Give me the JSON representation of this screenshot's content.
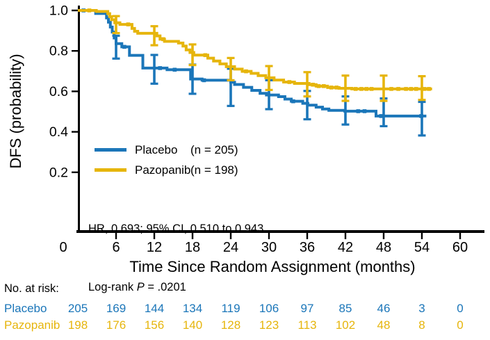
{
  "figure": {
    "legend": {
      "items": [
        {
          "name": "Placebo",
          "n_label": "(n = 205)",
          "color": "#1B76B9"
        },
        {
          "name": "Pazopanib",
          "n_label": "(n = 198)",
          "color": "#E6B50C"
        }
      ]
    },
    "stats": {
      "hr_line": "HR, 0.693; 95% CI, 0.510 to 0.943",
      "logrank_prefix": "Log-rank ",
      "p_symbol": "P",
      "p_suffix": " = .0201"
    },
    "risk_table": {
      "title": "No. at risk:",
      "timepoints": [
        0,
        6,
        12,
        18,
        24,
        30,
        36,
        42,
        48,
        54,
        60
      ],
      "rows": [
        {
          "label": "Placebo",
          "color": "#1B76B9",
          "values": [
            "205",
            "169",
            "144",
            "134",
            "119",
            "106",
            "97",
            "85",
            "46",
            "3",
            "0"
          ]
        },
        {
          "label": "Pazopanib",
          "color": "#E6B50C",
          "values": [
            "198",
            "176",
            "156",
            "140",
            "128",
            "123",
            "113",
            "102",
            "48",
            "8",
            "0"
          ]
        }
      ]
    }
  },
  "chart_data": {
    "type": "line",
    "subtype": "kaplan-meier-step",
    "title": "",
    "xlabel": "Time Since Random Assignment (months)",
    "ylabel": "DFS (probability)",
    "xlim": [
      0,
      63.5
    ],
    "ylim": [
      -0.09,
      1.02
    ],
    "grid": false,
    "legend_position": "inside-lower-left",
    "x_ticks": [
      0,
      6,
      12,
      18,
      24,
      30,
      36,
      42,
      48,
      54,
      60
    ],
    "x_ticklabels": [
      "0",
      "6",
      "12",
      "18",
      "24",
      "30",
      "36",
      "42",
      "48",
      "54",
      "60"
    ],
    "y_ticks": [
      1.0,
      0.8,
      0.6,
      0.4,
      0.2
    ],
    "y_ticklabels": [
      "1.0",
      "0.8",
      "0.6",
      "0.4",
      "0.2"
    ],
    "axis_color": "#000000",
    "series": [
      {
        "name": "Placebo",
        "color": "#1B76B9",
        "steps": [
          [
            0,
            1.0
          ],
          [
            2.8,
            0.985
          ],
          [
            4.5,
            0.963
          ],
          [
            4.8,
            0.942
          ],
          [
            5.1,
            0.918
          ],
          [
            5.4,
            0.893
          ],
          [
            5.7,
            0.864
          ],
          [
            6.0,
            0.836
          ],
          [
            6.9,
            0.82
          ],
          [
            8.1,
            0.778
          ],
          [
            10.2,
            0.715
          ],
          [
            14.0,
            0.707
          ],
          [
            17.7,
            0.661
          ],
          [
            19.5,
            0.655
          ],
          [
            24.0,
            0.645
          ],
          [
            24.6,
            0.634
          ],
          [
            26.0,
            0.62
          ],
          [
            27.3,
            0.605
          ],
          [
            28.6,
            0.59
          ],
          [
            29.6,
            0.582
          ],
          [
            31.5,
            0.574
          ],
          [
            32.5,
            0.562
          ],
          [
            33.5,
            0.551
          ],
          [
            35.3,
            0.541
          ],
          [
            36.1,
            0.532
          ],
          [
            37.4,
            0.522
          ],
          [
            38.4,
            0.513
          ],
          [
            39.4,
            0.506
          ],
          [
            41.9,
            0.502
          ],
          [
            46.8,
            0.478
          ],
          [
            54.7,
            0.478
          ]
        ],
        "censors": [
          0.9,
          7.3,
          12.9,
          15.2,
          19.8,
          33.8,
          44.0,
          45.0,
          47.6,
          53.9
        ],
        "error_bars": [
          {
            "t": 6,
            "lo": 0.762,
            "hi": 0.875
          },
          {
            "t": 12,
            "lo": 0.638,
            "hi": 0.78
          },
          {
            "t": 18,
            "lo": 0.588,
            "hi": 0.732
          },
          {
            "t": 24,
            "lo": 0.528,
            "hi": 0.712
          },
          {
            "t": 30,
            "lo": 0.512,
            "hi": 0.655
          },
          {
            "t": 36,
            "lo": 0.462,
            "hi": 0.602
          },
          {
            "t": 42,
            "lo": 0.436,
            "hi": 0.575
          },
          {
            "t": 48,
            "lo": 0.428,
            "hi": 0.565
          },
          {
            "t": 54,
            "lo": 0.382,
            "hi": 0.548
          }
        ]
      },
      {
        "name": "Pazopanib",
        "color": "#E6B50C",
        "steps": [
          [
            0,
            1.0
          ],
          [
            2.9,
            0.995
          ],
          [
            4.7,
            0.984
          ],
          [
            5.0,
            0.969
          ],
          [
            5.3,
            0.954
          ],
          [
            5.8,
            0.939
          ],
          [
            6.6,
            0.931
          ],
          [
            8.5,
            0.911
          ],
          [
            8.9,
            0.897
          ],
          [
            9.4,
            0.887
          ],
          [
            12.4,
            0.874
          ],
          [
            12.9,
            0.858
          ],
          [
            13.6,
            0.847
          ],
          [
            15.8,
            0.839
          ],
          [
            16.5,
            0.824
          ],
          [
            17.0,
            0.805
          ],
          [
            17.6,
            0.792
          ],
          [
            18.2,
            0.779
          ],
          [
            20.4,
            0.764
          ],
          [
            21.3,
            0.75
          ],
          [
            22.3,
            0.736
          ],
          [
            23.3,
            0.722
          ],
          [
            24.6,
            0.71
          ],
          [
            25.8,
            0.699
          ],
          [
            27.2,
            0.689
          ],
          [
            28.3,
            0.678
          ],
          [
            29.5,
            0.667
          ],
          [
            30.8,
            0.656
          ],
          [
            32.3,
            0.646
          ],
          [
            34.0,
            0.639
          ],
          [
            36.3,
            0.633
          ],
          [
            37.4,
            0.626
          ],
          [
            39.2,
            0.619
          ],
          [
            41.0,
            0.615
          ],
          [
            43.0,
            0.612
          ],
          [
            55.6,
            0.612
          ]
        ],
        "censors": [
          1.8,
          7.9,
          13.4,
          20.0,
          26.4,
          33.2,
          36.9,
          37.8,
          38.6,
          39.8,
          40.6,
          43.6,
          44.5,
          45.3,
          46.1,
          49.2,
          50.3,
          51.5,
          52.3,
          53.1,
          54.4,
          55.1
        ],
        "error_bars": [
          {
            "t": 6,
            "lo": 0.888,
            "hi": 0.972
          },
          {
            "t": 12,
            "lo": 0.828,
            "hi": 0.922
          },
          {
            "t": 18,
            "lo": 0.73,
            "hi": 0.832
          },
          {
            "t": 24,
            "lo": 0.655,
            "hi": 0.765
          },
          {
            "t": 30,
            "lo": 0.607,
            "hi": 0.725
          },
          {
            "t": 36,
            "lo": 0.575,
            "hi": 0.695
          },
          {
            "t": 42,
            "lo": 0.553,
            "hi": 0.678
          },
          {
            "t": 48,
            "lo": 0.553,
            "hi": 0.678
          },
          {
            "t": 54,
            "lo": 0.558,
            "hi": 0.675
          }
        ]
      }
    ]
  }
}
